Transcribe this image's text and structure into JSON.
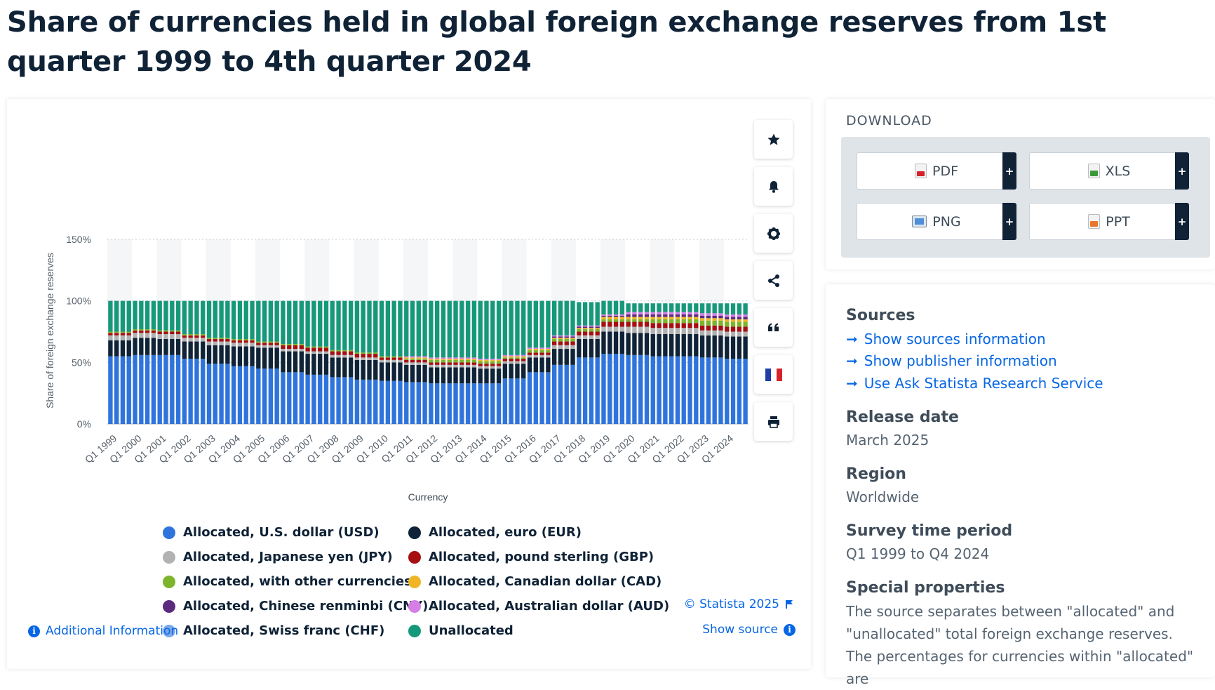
{
  "page": {
    "title": "Share of currencies held in global foreign exchange reserves from 1st quarter 1999 to 4th quarter 2024"
  },
  "chart_data": {
    "type": "bar",
    "stacked": true,
    "title": "",
    "xlabel": "Currency",
    "ylabel": "Share of foreign exchange reserves",
    "ylim": [
      0,
      150
    ],
    "yticks": [
      "0%",
      "50%",
      "100%",
      "150%"
    ],
    "grid": true,
    "legend_position": "bottom",
    "x_tick_labels": [
      "Q1 1999",
      "Q1 2000",
      "Q1 2001",
      "Q1 2002",
      "Q1 2003",
      "Q1 2004",
      "Q1 2005",
      "Q1 2006",
      "Q1 2007",
      "Q1 2008",
      "Q1 2009",
      "Q1 2010",
      "Q1 2011",
      "Q1 2012",
      "Q1 2013",
      "Q1 2014",
      "Q1 2015",
      "Q1 2016",
      "Q1 2017",
      "Q1 2018",
      "Q1 2019",
      "Q1 2020",
      "Q1 2021",
      "Q1 2022",
      "Q1 2023",
      "Q1 2024"
    ],
    "categories_note": "Quarterly, Q1 1999 to Q4 2024 (104 quarters); values given per year, constant within each year",
    "series": [
      {
        "name": "Allocated, U.S. dollar (USD)",
        "color": "#2f74dc",
        "values": [
          55,
          56,
          56,
          53,
          49,
          47,
          45,
          42,
          40,
          38,
          36,
          35,
          34,
          33,
          33,
          33,
          37,
          42,
          48,
          54,
          57,
          56,
          55,
          55,
          54,
          53
        ]
      },
      {
        "name": "Allocated, euro (EUR)",
        "color": "#0f2236",
        "values": [
          13,
          14,
          13,
          14,
          15,
          16,
          17,
          17,
          17,
          16,
          16,
          15,
          14,
          13,
          13,
          12,
          12,
          12,
          13,
          15,
          18,
          18,
          18,
          18,
          18,
          18
        ]
      },
      {
        "name": "Allocated, Japanese yen (JPY)",
        "color": "#b2b2b2",
        "values": [
          4,
          4,
          4,
          3,
          3,
          3,
          2,
          2,
          2,
          2,
          2,
          2,
          2,
          2,
          2,
          2,
          2,
          2,
          3,
          3,
          4,
          5,
          5,
          5,
          4,
          4
        ]
      },
      {
        "name": "Allocated, pound sterling (GBP)",
        "color": "#a60f12",
        "values": [
          2,
          2,
          2,
          2,
          2,
          2,
          2,
          3,
          3,
          3,
          3,
          2,
          2,
          2,
          2,
          2,
          2,
          2,
          3,
          3,
          4,
          4,
          4,
          4,
          4,
          4
        ]
      },
      {
        "name": "Allocated, with other currencies",
        "color": "#7cb52c",
        "values": [
          1,
          1,
          1,
          1,
          1,
          1,
          1,
          1,
          1,
          1,
          1,
          1,
          1,
          2,
          2,
          2,
          1,
          2,
          2,
          2,
          2,
          2,
          3,
          3,
          4,
          4
        ]
      },
      {
        "name": "Allocated, Canadian dollar (CAD)",
        "color": "#f0b526",
        "values": [
          0,
          0,
          0,
          0,
          0,
          0,
          0,
          0,
          0,
          0,
          0,
          0,
          1,
          1,
          1,
          1,
          1,
          1,
          1,
          1,
          2,
          2,
          2,
          2,
          2,
          2
        ]
      },
      {
        "name": "Allocated, Chinese renminbi (CNY)",
        "color": "#5c2a7e",
        "values": [
          0,
          0,
          0,
          0,
          0,
          0,
          0,
          0,
          0,
          0,
          0,
          0,
          0,
          0,
          0,
          0,
          0,
          0,
          1,
          1,
          1,
          2,
          2,
          2,
          2,
          2
        ]
      },
      {
        "name": "Allocated, Australian dollar (AUD)",
        "color": "#d57ee6",
        "values": [
          0,
          0,
          0,
          0,
          0,
          0,
          0,
          0,
          0,
          0,
          0,
          0,
          1,
          1,
          1,
          1,
          1,
          1,
          1,
          1,
          1,
          2,
          2,
          2,
          2,
          2
        ]
      },
      {
        "name": "Allocated, Swiss franc (CHF)",
        "color": "#7aa8ea",
        "values": [
          0,
          0,
          0,
          0,
          0,
          0,
          0,
          0,
          0,
          0,
          0,
          0,
          0,
          0,
          0,
          0,
          0,
          0,
          0,
          0,
          0,
          0,
          0,
          0,
          0,
          0
        ]
      },
      {
        "name": "Unallocated",
        "color": "#16987a",
        "values": [
          25,
          23,
          24,
          27,
          30,
          31,
          33,
          35,
          37,
          40,
          42,
          45,
          45,
          46,
          46,
          47,
          44,
          38,
          28,
          19,
          11,
          7,
          7,
          7,
          8,
          9
        ]
      }
    ]
  },
  "toolbar": {
    "buttons": [
      "star-icon",
      "bell-icon",
      "gear-icon",
      "share-icon",
      "quote-icon",
      "flag-icon",
      "print-icon"
    ]
  },
  "footer": {
    "copyright": "© Statista 2025",
    "show_source": "Show source",
    "additional_info": "Additional Information"
  },
  "download": {
    "title": "DOWNLOAD",
    "buttons": [
      "PDF",
      "XLS",
      "PNG",
      "PPT"
    ],
    "plus": "+"
  },
  "info": {
    "sources_heading": "Sources",
    "links": [
      "Show sources information",
      "Show publisher information",
      "Use Ask Statista Research Service"
    ],
    "release_heading": "Release date",
    "release_value": "March 2025",
    "region_heading": "Region",
    "region_value": "Worldwide",
    "period_heading": "Survey time period",
    "period_value": "Q1 1999 to Q4 2024",
    "special_heading": "Special properties",
    "special_value": "The source separates between \"allocated\" and \"unallocated\" total foreign exchange reserves. The percentages for currencies within \"allocated\" are"
  }
}
